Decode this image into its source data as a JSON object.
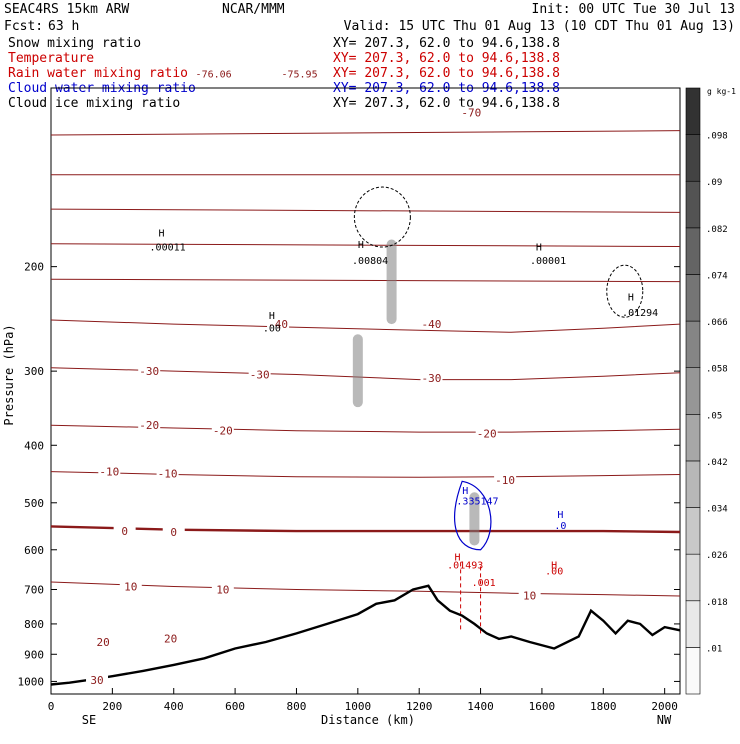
{
  "header": {
    "model": "SEAC4RS 15km ARW",
    "center": "NCAR/MMM",
    "init": "Init: 00 UTC Tue 30 Jul 13",
    "fcst_label": "Fcst:",
    "fcst_value": "63 h",
    "valid": "Valid: 15 UTC Thu 01 Aug 13 (10 CDT Thu 01 Aug 13)"
  },
  "legend_rows": [
    {
      "label": "Snow mixing ratio",
      "xy": "",
      "color": "#000000"
    },
    {
      "label": "Temperature",
      "xy": "XY= 207.3, 62.0 to  94.6,138.8",
      "color": "#cc0000"
    },
    {
      "label": "Rain water mixing ratio",
      "xy": "XY= 207.3, 62.0 to  94.6,138.8",
      "color": "#cc0000"
    },
    {
      "label": "Cloud water mixing ratio",
      "xy": "XY= 207.3, 62.0 to  94.6,138.8",
      "color": "#0000cc"
    },
    {
      "label": "Cloud ice mixing ratio",
      "xy": "XY= 207.3, 62.0 to  94.6,138.8",
      "color": "#000000"
    }
  ],
  "first_xy": "XY= 207.3, 62.0 to  94.6,138.8",
  "colors": {
    "temperature": "#8b1a1a",
    "rain": "#cc0000",
    "cloud_water": "#0000cc",
    "terrain": "#000000",
    "snow": "#808080"
  },
  "chart_data": {
    "type": "cross-section",
    "xlabel": "Distance (km)",
    "ylabel": "Pressure (hPa)",
    "xlim": [
      0,
      2050
    ],
    "ylim": [
      1050,
      100
    ],
    "yscale": "log",
    "x_ticks": [
      0,
      200,
      400,
      600,
      800,
      1000,
      1200,
      1400,
      1600,
      1800,
      2000
    ],
    "y_ticks": [
      200,
      300,
      400,
      500,
      600,
      700,
      800,
      900,
      1000
    ],
    "x_end_labels": {
      "left": "SE",
      "right": "NW"
    },
    "colorbar": {
      "unit": "g kg-1",
      "labels": [
        ".01",
        ".018",
        ".026",
        ".034",
        ".042",
        ".05",
        ".058",
        ".066",
        ".074",
        ".082",
        ".09",
        ".098"
      ]
    },
    "temperature_contours": [
      {
        "value": 10,
        "p": [
          680,
          692,
          700,
          705,
          710,
          714,
          718
        ]
      },
      {
        "value": 0,
        "p": [
          548,
          555,
          558,
          558,
          558,
          558,
          560
        ]
      },
      {
        "value": -10,
        "p": [
          443,
          448,
          452,
          453,
          452,
          450,
          448
        ]
      },
      {
        "value": -20,
        "p": [
          370,
          374,
          378,
          380,
          380,
          378,
          376
        ]
      },
      {
        "value": -30,
        "p": [
          296,
          300,
          304,
          310,
          310,
          306,
          302
        ]
      },
      {
        "value": -40,
        "p": [
          246,
          250,
          253,
          256,
          258,
          254,
          250
        ]
      }
    ],
    "temperature_labels": [
      {
        "text": "-70",
        "x": 1370,
        "p": 110
      },
      {
        "text": "-40",
        "x": 740,
        "p": 250
      },
      {
        "text": "-40",
        "x": 1240,
        "p": 250
      },
      {
        "text": "-30",
        "x": 320,
        "p": 300
      },
      {
        "text": "-30",
        "x": 680,
        "p": 304
      },
      {
        "text": "-30",
        "x": 1240,
        "p": 308
      },
      {
        "text": "-20",
        "x": 320,
        "p": 370
      },
      {
        "text": "-20",
        "x": 560,
        "p": 378
      },
      {
        "text": "-20",
        "x": 1420,
        "p": 382
      },
      {
        "text": "-10",
        "x": 190,
        "p": 443
      },
      {
        "text": "-10",
        "x": 380,
        "p": 446
      },
      {
        "text": "-10",
        "x": 1480,
        "p": 458
      },
      {
        "text": "0",
        "x": 240,
        "p": 558
      },
      {
        "text": "0",
        "x": 400,
        "p": 560
      },
      {
        "text": "10",
        "x": 260,
        "p": 692
      },
      {
        "text": "10",
        "x": 560,
        "p": 700
      },
      {
        "text": "10",
        "x": 1560,
        "p": 716
      },
      {
        "text": "20",
        "x": 170,
        "p": 858
      },
      {
        "text": "20",
        "x": 390,
        "p": 846
      },
      {
        "text": "30",
        "x": 150,
        "p": 995
      }
    ],
    "extrema_labels": [
      {
        "text": "H",
        "x": 360,
        "p": 178,
        "color": "#000000"
      },
      {
        "text": ".00011",
        "x": 380,
        "p": 188,
        "color": "#000000"
      },
      {
        "text": "H",
        "x": 1010,
        "p": 186,
        "color": "#000000"
      },
      {
        "text": ".00804",
        "x": 1040,
        "p": 198,
        "color": "#000000"
      },
      {
        "text": "H",
        "x": 1590,
        "p": 188,
        "color": "#000000"
      },
      {
        "text": ".00001",
        "x": 1620,
        "p": 198,
        "color": "#000000"
      },
      {
        "text": "H",
        "x": 1890,
        "p": 228,
        "color": "#000000"
      },
      {
        "text": ".01294",
        "x": 1920,
        "p": 242,
        "color": "#000000"
      },
      {
        "text": "H",
        "x": 720,
        "p": 245,
        "color": "#000000"
      },
      {
        "text": ".00",
        "x": 720,
        "p": 257,
        "color": "#000000"
      },
      {
        "text": "H",
        "x": 1350,
        "p": 483,
        "color": "#0000cc"
      },
      {
        "text": ".335147",
        "x": 1390,
        "p": 503,
        "color": "#0000cc"
      },
      {
        "text": "H",
        "x": 1660,
        "p": 530,
        "color": "#0000cc"
      },
      {
        "text": ".0",
        "x": 1660,
        "p": 553,
        "color": "#0000cc"
      },
      {
        "text": "H",
        "x": 1325,
        "p": 625,
        "color": "#cc0000"
      },
      {
        "text": ".01493",
        "x": 1350,
        "p": 645,
        "color": "#cc0000"
      },
      {
        "text": "H",
        "x": 1640,
        "p": 645,
        "color": "#cc0000"
      },
      {
        "text": ".00",
        "x": 1640,
        "p": 660,
        "color": "#cc0000"
      },
      {
        "text": ".001",
        "x": 1410,
        "p": 690,
        "color": "#cc0000"
      },
      {
        "text": "-75.95",
        "x": 810,
        "p": 96,
        "color": "#8b1a1a"
      },
      {
        "text": "-76.06",
        "x": 530,
        "p": 96,
        "color": "#8b1a1a"
      }
    ],
    "terrain": {
      "x": [
        0,
        60,
        120,
        200,
        300,
        400,
        500,
        600,
        700,
        800,
        900,
        1000,
        1060,
        1120,
        1180,
        1230,
        1260,
        1300,
        1340,
        1380,
        1420,
        1460,
        1500,
        1560,
        1640,
        1720,
        1760,
        1800,
        1840,
        1880,
        1920,
        1960,
        2000,
        2050
      ],
      "p": [
        1012,
        1005,
        995,
        980,
        960,
        938,
        914,
        880,
        858,
        830,
        800,
        770,
        740,
        730,
        700,
        690,
        730,
        760,
        775,
        800,
        830,
        848,
        840,
        858,
        880,
        840,
        760,
        790,
        830,
        790,
        800,
        835,
        810,
        820
      ]
    },
    "snow_cells": [
      {
        "x": 1000,
        "p_top": 260,
        "p_bot": 345
      },
      {
        "x": 1110,
        "p_top": 180,
        "p_bot": 250
      },
      {
        "x": 1380,
        "p_top": 480,
        "p_bot": 590
      }
    ]
  }
}
